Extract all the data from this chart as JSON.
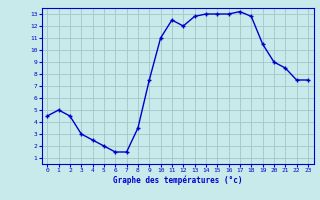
{
  "hours": [
    0,
    1,
    2,
    3,
    4,
    5,
    6,
    7,
    8,
    9,
    10,
    11,
    12,
    13,
    14,
    15,
    16,
    17,
    18,
    19,
    20,
    21,
    22,
    23
  ],
  "temps": [
    4.5,
    5.0,
    4.5,
    3.0,
    2.5,
    2.0,
    1.5,
    1.5,
    3.5,
    7.5,
    11.0,
    12.5,
    12.0,
    12.8,
    13.0,
    13.0,
    13.0,
    13.2,
    12.8,
    10.5,
    9.0,
    8.5,
    7.5,
    7.5
  ],
  "line_color": "#0000cc",
  "marker": "+",
  "bg_color": "#c8eaea",
  "plot_bg_color": "#c8eaea",
  "grid_color": "#a0c8c8",
  "xlabel": "Graphe des températures (°c)",
  "xlabel_color": "#0000cc",
  "tick_color": "#0000cc",
  "axis_color": "#0000cc",
  "ylim_min": 0.5,
  "ylim_max": 13.5,
  "xlim_min": -0.5,
  "xlim_max": 23.5,
  "yticks": [
    1,
    2,
    3,
    4,
    5,
    6,
    7,
    8,
    9,
    10,
    11,
    12,
    13
  ],
  "xticks": [
    0,
    1,
    2,
    3,
    4,
    5,
    6,
    7,
    8,
    9,
    10,
    11,
    12,
    13,
    14,
    15,
    16,
    17,
    18,
    19,
    20,
    21,
    22,
    23
  ]
}
